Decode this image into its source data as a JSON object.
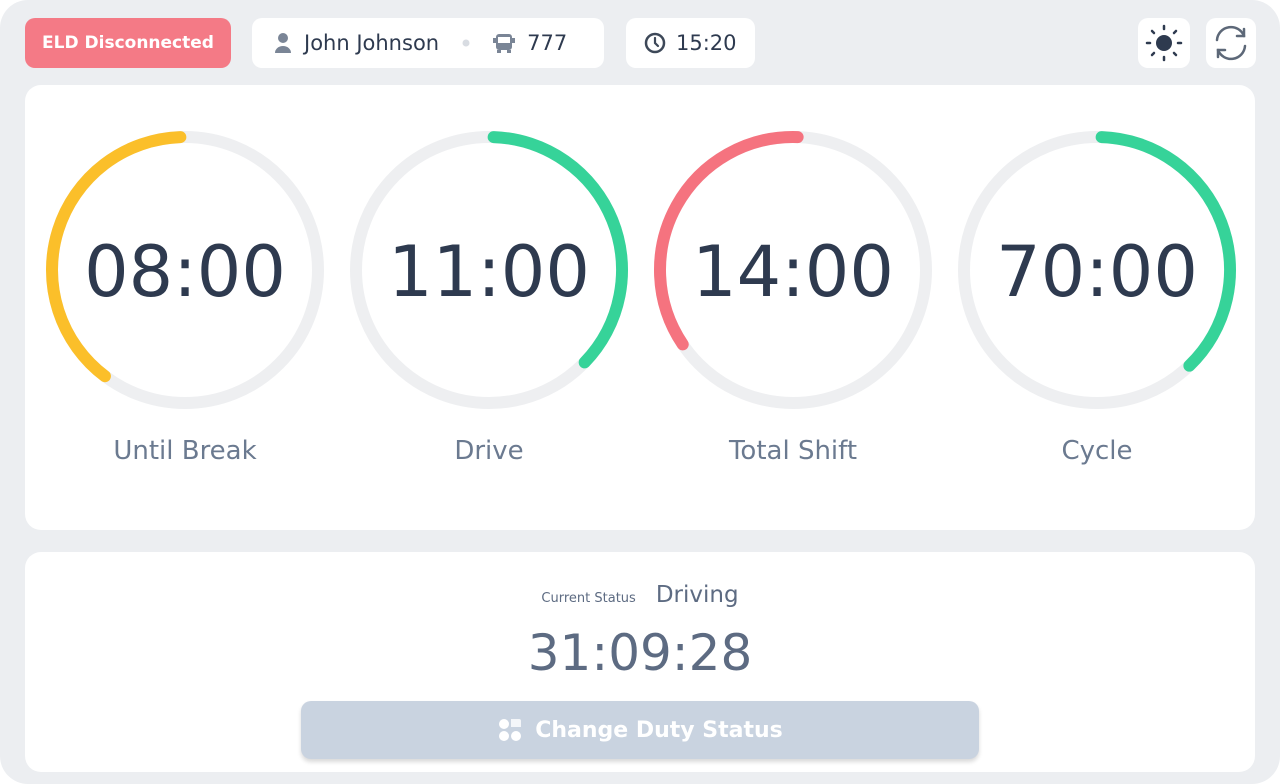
{
  "header": {
    "eld_status": "ELD Disconnected",
    "driver": "John Johnson",
    "vehicle": "777",
    "time": "15:20"
  },
  "gauges": [
    {
      "value": "08:00",
      "label": "Until Break"
    },
    {
      "value": "11:00",
      "label": "Drive"
    },
    {
      "value": "14:00",
      "label": "Total Shift"
    },
    {
      "value": "70:00",
      "label": "Cycle"
    }
  ],
  "status": {
    "label": "Current Status",
    "value": "Driving",
    "timer": "31:09:28",
    "button": "Change Duty Status"
  }
}
